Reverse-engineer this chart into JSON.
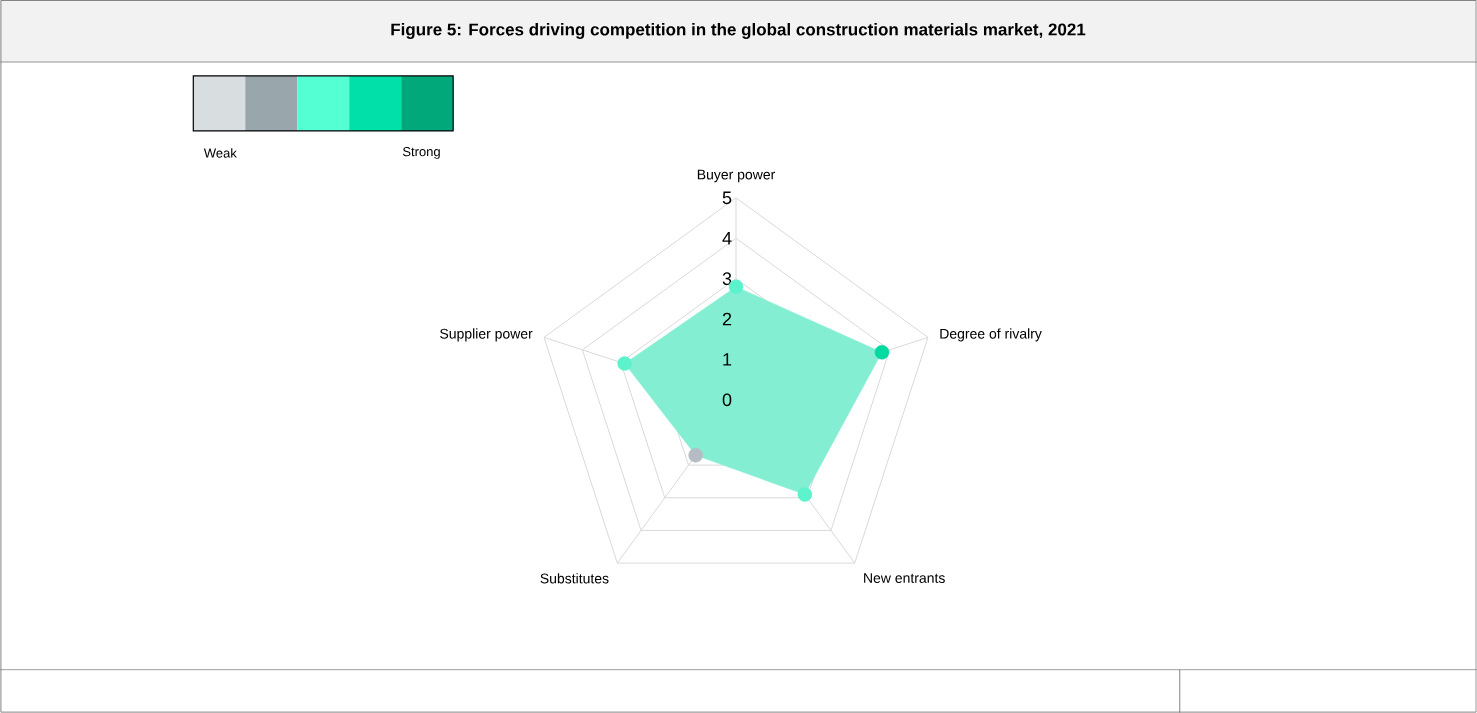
{
  "chart_data": {
    "type": "radar",
    "title": "Figure 5: Forces driving competition in the global construction materials market, 2021",
    "categories": [
      "Buyer power",
      "Degree of rivalry",
      "New entrants",
      "Substitutes",
      "Supplier power"
    ],
    "series": [
      {
        "color": "#84eed3",
        "colors": [
          "#5cf2cc",
          "#00d9a0",
          "#5cf2cc",
          "#b6bcc4",
          "#5cf2cc"
        ],
        "values": [
          2.8,
          3.8,
          2.9,
          1.7,
          2.9
        ]
      }
    ],
    "ylim": [
      0,
      5
    ],
    "yticks": [
      0,
      1,
      2,
      3,
      4,
      5
    ],
    "grid": true,
    "marker": "circle",
    "annotations": [
      "Weak",
      "Strong"
    ]
  }
}
